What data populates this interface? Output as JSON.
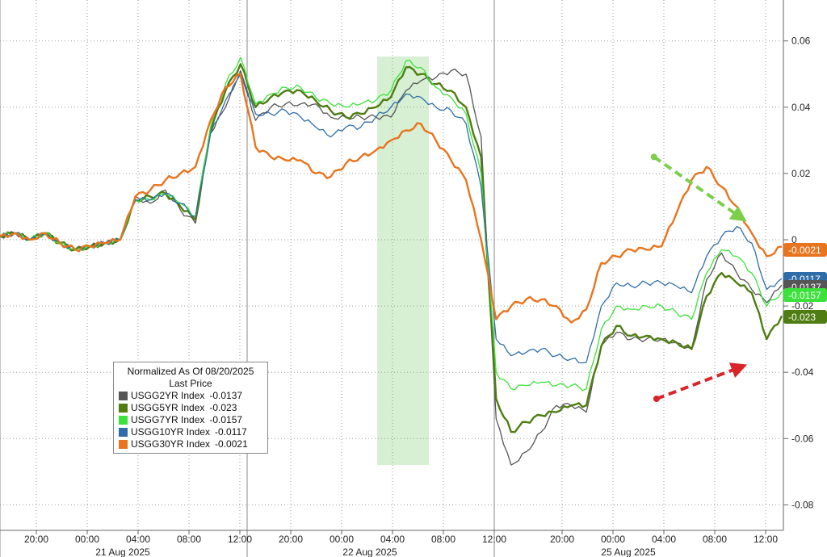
{
  "chart_data": {
    "type": "line",
    "title": "",
    "xlabel": "",
    "ylabel": "",
    "ylim": [
      -0.085,
      0.07
    ],
    "y_ticks": [
      0.06,
      0.04,
      0.02,
      0,
      -0.02,
      -0.04,
      -0.06,
      -0.08
    ],
    "y_tick_labels": [
      "0.06",
      "0.04",
      "0.02",
      "0",
      "-0.02",
      "-0.04",
      "-0.06",
      "-0.08"
    ],
    "x_tick_labels": [
      "20:00",
      "00:00",
      "04:00",
      "08:00",
      "12:00",
      "20:00",
      "00:00",
      "04:00",
      "08:00",
      "12:00",
      "20:00",
      "00:00",
      "04:00",
      "08:00",
      "12:00"
    ],
    "date_labels": [
      "21 Aug 2025",
      "22 Aug 2025",
      "25 Aug 2025"
    ],
    "grid": true,
    "legend_position": "bottom-left",
    "legend": {
      "title": "Normalized As Of 08/20/2025",
      "subtitle": "Last Price",
      "entries": [
        {
          "name": "USGG2YR Index",
          "value": "-0.0137",
          "color": "#555555"
        },
        {
          "name": "USGG5YR Index",
          "value": "-0.023",
          "color": "#4f7d12"
        },
        {
          "name": "USGG7YR Index",
          "value": "-0.0157",
          "color": "#3be23b"
        },
        {
          "name": "USGG10YR Index",
          "value": "-0.0117",
          "color": "#2f6da8"
        },
        {
          "name": "USGG30YR Index",
          "value": "-0.0021",
          "color": "#e8741e"
        }
      ]
    },
    "value_labels": [
      {
        "text": "-0.0021",
        "color": "#e8741e"
      },
      {
        "text": "-0.0117",
        "color": "#2f6da8"
      },
      {
        "text": "-0.0137",
        "color": "#555555"
      },
      {
        "text": "-0.0157",
        "color": "#3be23b"
      },
      {
        "text": "-0.023",
        "color": "#4f7d12"
      }
    ],
    "series": [
      {
        "name": "USGG2YR Index",
        "color": "#555555",
        "x": [
          0,
          6,
          12,
          18,
          24,
          30,
          36,
          42,
          48,
          54,
          60,
          66,
          72,
          78,
          84,
          90,
          96,
          102,
          108,
          114,
          120,
          126,
          132,
          138,
          144,
          150,
          156,
          162,
          168,
          174,
          180,
          186,
          192,
          198,
          204,
          210,
          216,
          222,
          228,
          234,
          240,
          246,
          252,
          258,
          264,
          270,
          276,
          282,
          288,
          294,
          300,
          306,
          312
        ],
        "y": [
          0.001,
          0.002,
          0.0,
          0.002,
          -0.001,
          -0.003,
          -0.002,
          -0.001,
          0.0,
          0.013,
          0.011,
          0.015,
          0.009,
          0.005,
          0.032,
          0.04,
          0.051,
          0.036,
          0.04,
          0.041,
          0.041,
          0.041,
          0.037,
          0.037,
          0.037,
          0.037,
          0.037,
          0.045,
          0.048,
          0.049,
          0.051,
          0.05,
          0.031,
          -0.054,
          -0.068,
          -0.064,
          -0.058,
          -0.05,
          -0.05,
          -0.052,
          -0.032,
          -0.028,
          -0.03,
          -0.03,
          -0.03,
          -0.031,
          -0.033,
          -0.012,
          -0.004,
          -0.01,
          -0.015,
          -0.019,
          -0.0137
        ]
      },
      {
        "name": "USGG5YR Index",
        "color": "#4f7d12",
        "x": [
          0,
          6,
          12,
          18,
          24,
          30,
          36,
          42,
          48,
          54,
          60,
          66,
          72,
          78,
          84,
          90,
          96,
          102,
          108,
          114,
          120,
          126,
          132,
          138,
          144,
          150,
          156,
          162,
          168,
          174,
          180,
          186,
          192,
          198,
          204,
          210,
          216,
          222,
          228,
          234,
          240,
          246,
          252,
          258,
          264,
          270,
          276,
          282,
          288,
          294,
          300,
          306,
          312
        ],
        "y": [
          0.001,
          0.002,
          0.0,
          0.002,
          -0.001,
          -0.003,
          -0.002,
          -0.001,
          0.0,
          0.012,
          0.013,
          0.014,
          0.01,
          0.006,
          0.033,
          0.045,
          0.053,
          0.04,
          0.043,
          0.045,
          0.045,
          0.042,
          0.039,
          0.037,
          0.038,
          0.04,
          0.043,
          0.052,
          0.05,
          0.047,
          0.045,
          0.04,
          0.025,
          -0.048,
          -0.058,
          -0.055,
          -0.053,
          -0.052,
          -0.05,
          -0.05,
          -0.032,
          -0.026,
          -0.029,
          -0.029,
          -0.03,
          -0.031,
          -0.033,
          -0.017,
          -0.01,
          -0.013,
          -0.016,
          -0.03,
          -0.023
        ]
      },
      {
        "name": "USGG7YR Index",
        "color": "#3be23b",
        "x": [
          0,
          6,
          12,
          18,
          24,
          30,
          36,
          42,
          48,
          54,
          60,
          66,
          72,
          78,
          84,
          90,
          96,
          102,
          108,
          114,
          120,
          126,
          132,
          138,
          144,
          150,
          156,
          162,
          168,
          174,
          180,
          186,
          192,
          198,
          204,
          210,
          216,
          222,
          228,
          234,
          240,
          246,
          252,
          258,
          264,
          270,
          276,
          282,
          288,
          294,
          300,
          306,
          312
        ],
        "y": [
          0.001,
          0.002,
          0.0,
          0.002,
          -0.001,
          -0.003,
          -0.002,
          -0.001,
          0.0,
          0.012,
          0.012,
          0.014,
          0.011,
          0.007,
          0.034,
          0.047,
          0.055,
          0.041,
          0.044,
          0.046,
          0.046,
          0.043,
          0.041,
          0.04,
          0.041,
          0.042,
          0.045,
          0.054,
          0.052,
          0.046,
          0.043,
          0.038,
          0.02,
          -0.04,
          -0.045,
          -0.044,
          -0.043,
          -0.044,
          -0.044,
          -0.045,
          -0.027,
          -0.02,
          -0.021,
          -0.02,
          -0.02,
          -0.022,
          -0.024,
          -0.01,
          -0.003,
          -0.005,
          -0.01,
          -0.02,
          -0.0157
        ]
      },
      {
        "name": "USGG10YR Index",
        "color": "#2f6da8",
        "x": [
          0,
          6,
          12,
          18,
          24,
          30,
          36,
          42,
          48,
          54,
          60,
          66,
          72,
          78,
          84,
          90,
          96,
          102,
          108,
          114,
          120,
          126,
          132,
          138,
          144,
          150,
          156,
          162,
          168,
          174,
          180,
          186,
          192,
          198,
          204,
          210,
          216,
          222,
          228,
          234,
          240,
          246,
          252,
          258,
          264,
          270,
          276,
          282,
          288,
          294,
          300,
          306,
          312
        ],
        "y": [
          0.001,
          0.002,
          0.0,
          0.002,
          -0.001,
          -0.003,
          -0.002,
          -0.001,
          0.0,
          0.012,
          0.012,
          0.014,
          0.011,
          0.007,
          0.032,
          0.042,
          0.05,
          0.038,
          0.038,
          0.039,
          0.037,
          0.034,
          0.031,
          0.034,
          0.034,
          0.037,
          0.04,
          0.044,
          0.043,
          0.04,
          0.039,
          0.035,
          0.016,
          -0.03,
          -0.035,
          -0.034,
          -0.033,
          -0.035,
          -0.036,
          -0.037,
          -0.02,
          -0.013,
          -0.014,
          -0.013,
          -0.013,
          -0.014,
          -0.016,
          -0.005,
          0.001,
          0.004,
          -0.001,
          -0.015,
          -0.0117
        ]
      },
      {
        "name": "USGG30YR Index",
        "color": "#e8741e",
        "x": [
          0,
          6,
          12,
          18,
          24,
          30,
          36,
          42,
          48,
          54,
          60,
          66,
          72,
          78,
          84,
          90,
          96,
          102,
          108,
          114,
          120,
          126,
          132,
          138,
          144,
          150,
          156,
          162,
          168,
          174,
          180,
          186,
          192,
          198,
          204,
          210,
          216,
          222,
          228,
          234,
          240,
          246,
          252,
          258,
          264,
          270,
          276,
          282,
          288,
          294,
          300,
          306,
          312
        ],
        "y": [
          0.001,
          0.002,
          0.0,
          0.002,
          -0.001,
          -0.003,
          -0.002,
          -0.001,
          0.0,
          0.013,
          0.015,
          0.018,
          0.02,
          0.022,
          0.036,
          0.046,
          0.05,
          0.028,
          0.025,
          0.024,
          0.024,
          0.02,
          0.019,
          0.023,
          0.025,
          0.027,
          0.03,
          0.033,
          0.035,
          0.03,
          0.024,
          0.018,
          0.0,
          -0.024,
          -0.02,
          -0.018,
          -0.018,
          -0.02,
          -0.025,
          -0.021,
          -0.007,
          -0.005,
          -0.003,
          -0.003,
          -0.002,
          0.008,
          0.018,
          0.022,
          0.016,
          0.01,
          0.002,
          -0.005,
          -0.0021
        ]
      }
    ],
    "annotations": [
      {
        "type": "highlight-band",
        "x_range": [
          196,
          208
        ],
        "color": "#c9ebc4"
      },
      {
        "type": "arrow",
        "from": [
          261,
          0.025
        ],
        "to": [
          297,
          0.006
        ],
        "color": "#7ccf4a",
        "dashed": true
      },
      {
        "type": "arrow",
        "from": [
          262,
          -0.048
        ],
        "to": [
          297,
          -0.038
        ],
        "color": "#d9242a",
        "dashed": true
      }
    ]
  }
}
